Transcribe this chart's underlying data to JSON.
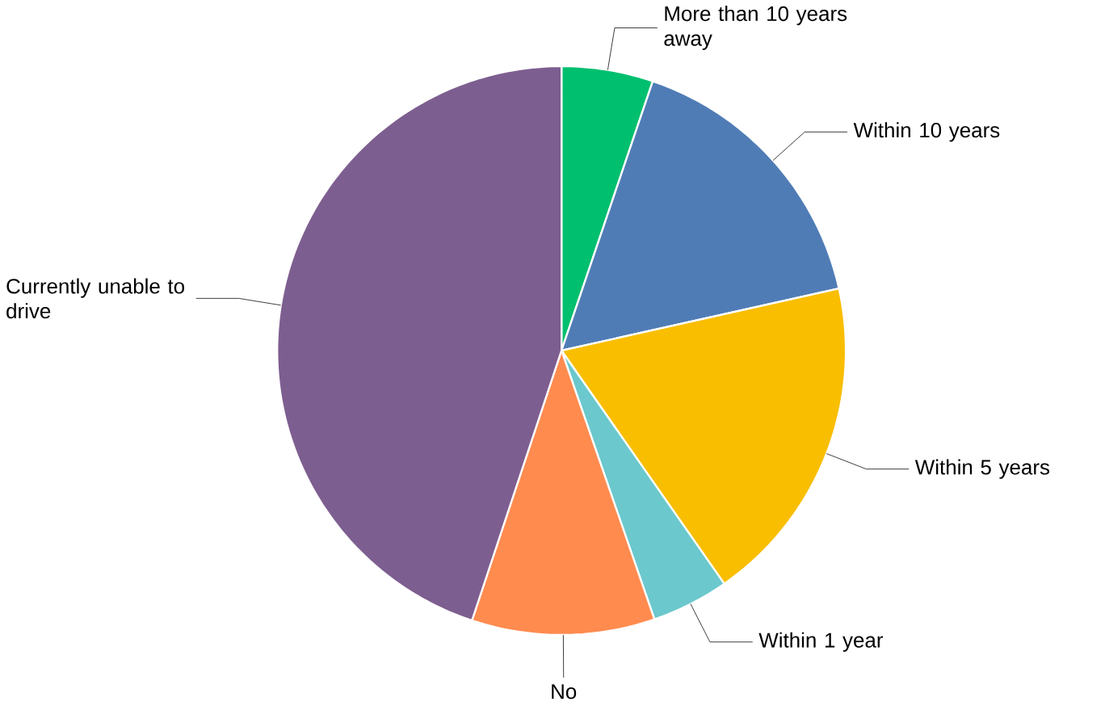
{
  "chart_data": {
    "type": "pie",
    "categories": [
      "More than 10 years away",
      "Within 10 years",
      "Within 5 years",
      "Within 1 year",
      "No",
      "Currently unable to drive"
    ],
    "values": [
      5.2,
      16.3,
      18.8,
      4.4,
      10.4,
      44.9
    ],
    "colors": [
      "#00bf6f",
      "#507cb6",
      "#f9be00",
      "#6bc8cd",
      "#ff8b4f",
      "#7d5e90"
    ]
  }
}
